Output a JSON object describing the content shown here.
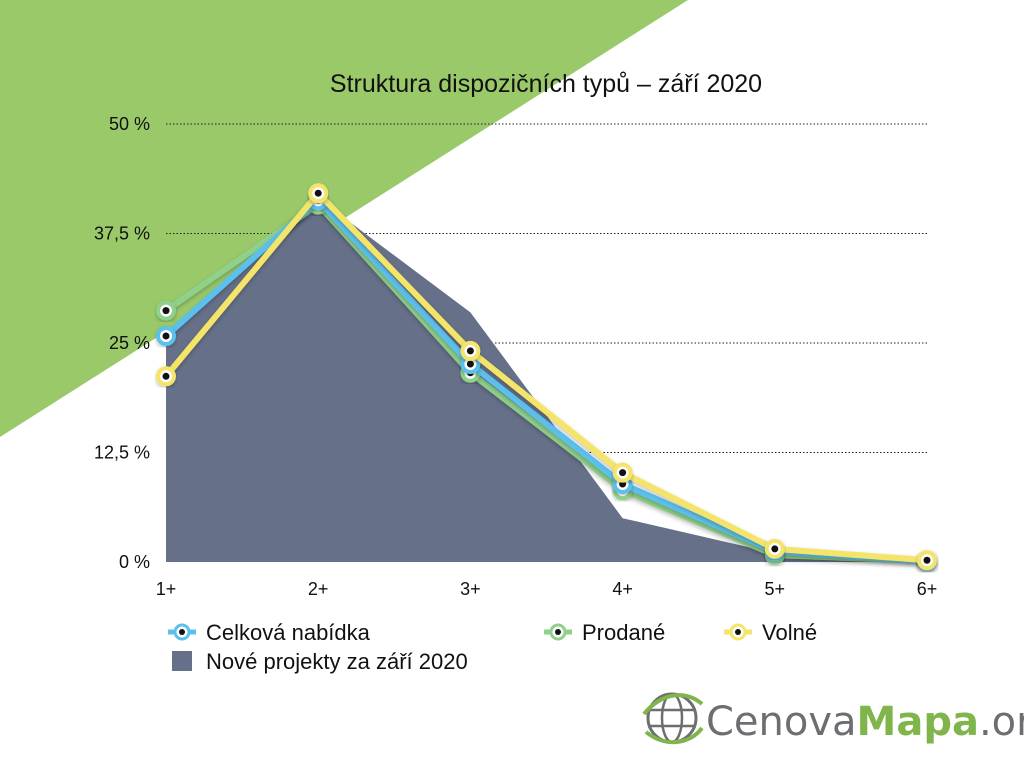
{
  "colors": {
    "background_triangle": "#9AC96A",
    "area": "#667189",
    "celkova": "#5BC0EC",
    "prodane": "#8FD08A",
    "volne": "#F4E46A",
    "brand_grey": "#6D6E71",
    "brand_green": "#7FB54A"
  },
  "chart_data": {
    "type": "line",
    "title": "Struktura dispozičních typů – září 2020",
    "categories": [
      "1+",
      "2+",
      "3+",
      "4+",
      "5+",
      "6+"
    ],
    "y_ticks": [
      "0 %",
      "12,5 %",
      "25 %",
      "37,5 %",
      "50 %"
    ],
    "y_tick_values": [
      0,
      12.5,
      25,
      37.5,
      50
    ],
    "ylim": [
      0,
      50
    ],
    "grid": "horizontal dotted",
    "series": [
      {
        "name": "Nové projekty za září 2020",
        "kind": "area",
        "values": [
          25.5,
          41.5,
          28.5,
          5,
          1,
          0
        ]
      },
      {
        "name": "Prodané",
        "kind": "line",
        "values": [
          28.7,
          40.8,
          21.6,
          8.2,
          0.8,
          0.1
        ]
      },
      {
        "name": "Celková nabídka",
        "kind": "line",
        "values": [
          25.8,
          41.3,
          22.6,
          8.9,
          1.2,
          0.1
        ]
      },
      {
        "name": "Volné",
        "kind": "line",
        "values": [
          21.2,
          42.1,
          24.1,
          10.2,
          1.5,
          0.2
        ]
      }
    ],
    "legend": {
      "placement": "bottom",
      "items": [
        "Celková nabídka",
        "Prodané",
        "Volné",
        "Nové projekty za září 2020"
      ]
    }
  },
  "brand": {
    "part1": "Cenova",
    "part2": "Mapa",
    "part3": ".org",
    "icon": "globe-icon"
  }
}
